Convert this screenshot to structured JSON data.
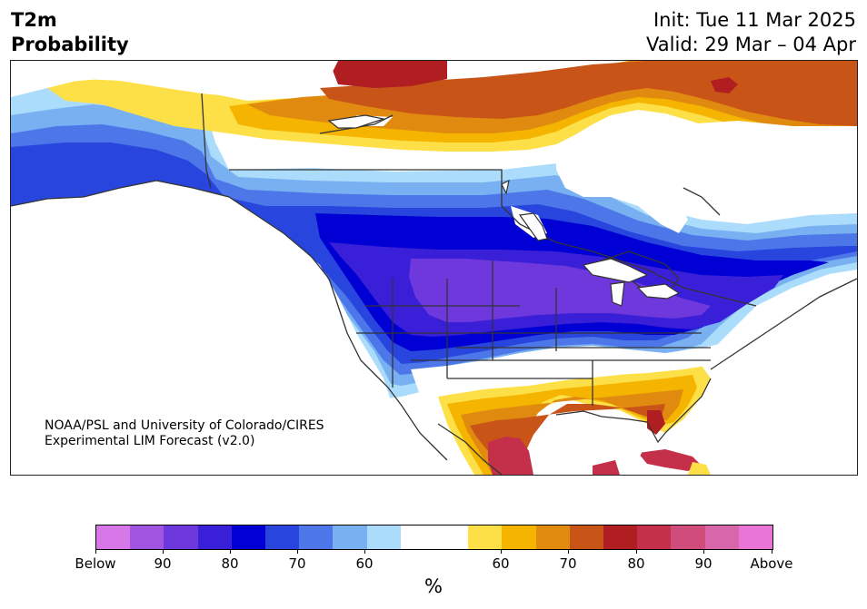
{
  "title": {
    "left_line1": "T2m",
    "left_line2": "Probability",
    "init": "Init: Tue 11 Mar 2025",
    "valid": "Valid: 29 Mar – 04 Apr"
  },
  "credit": {
    "line1": "NOAA/PSL and University of Colorado/CIRES",
    "line2": "Experimental LIM Forecast (v2.0)"
  },
  "colorbar": {
    "colors": [
      "#d877e8",
      "#a054e0",
      "#6e38dc",
      "#3a1fd8",
      "#0000d4",
      "#2846dd",
      "#4d77e8",
      "#78b0f2",
      "#acdcfc",
      "#ffffff",
      "#ffffff",
      "#fde047",
      "#f4b400",
      "#e08a10",
      "#c85418",
      "#b01e22",
      "#c4304a",
      "#d04c7a",
      "#d866aa",
      "#e874d8"
    ],
    "tick_labels": [
      "Below",
      "90",
      "80",
      "70",
      "60",
      "60",
      "70",
      "80",
      "90",
      "Above"
    ],
    "unit": "%"
  },
  "map": {
    "legend_meaning": "below-normal (blue/purple) vs above-normal (orange/red) 2m temperature probability",
    "regions": [
      "Canada",
      "United States",
      "Mexico",
      "Cuba",
      "Alaska",
      "Greenland"
    ]
  }
}
